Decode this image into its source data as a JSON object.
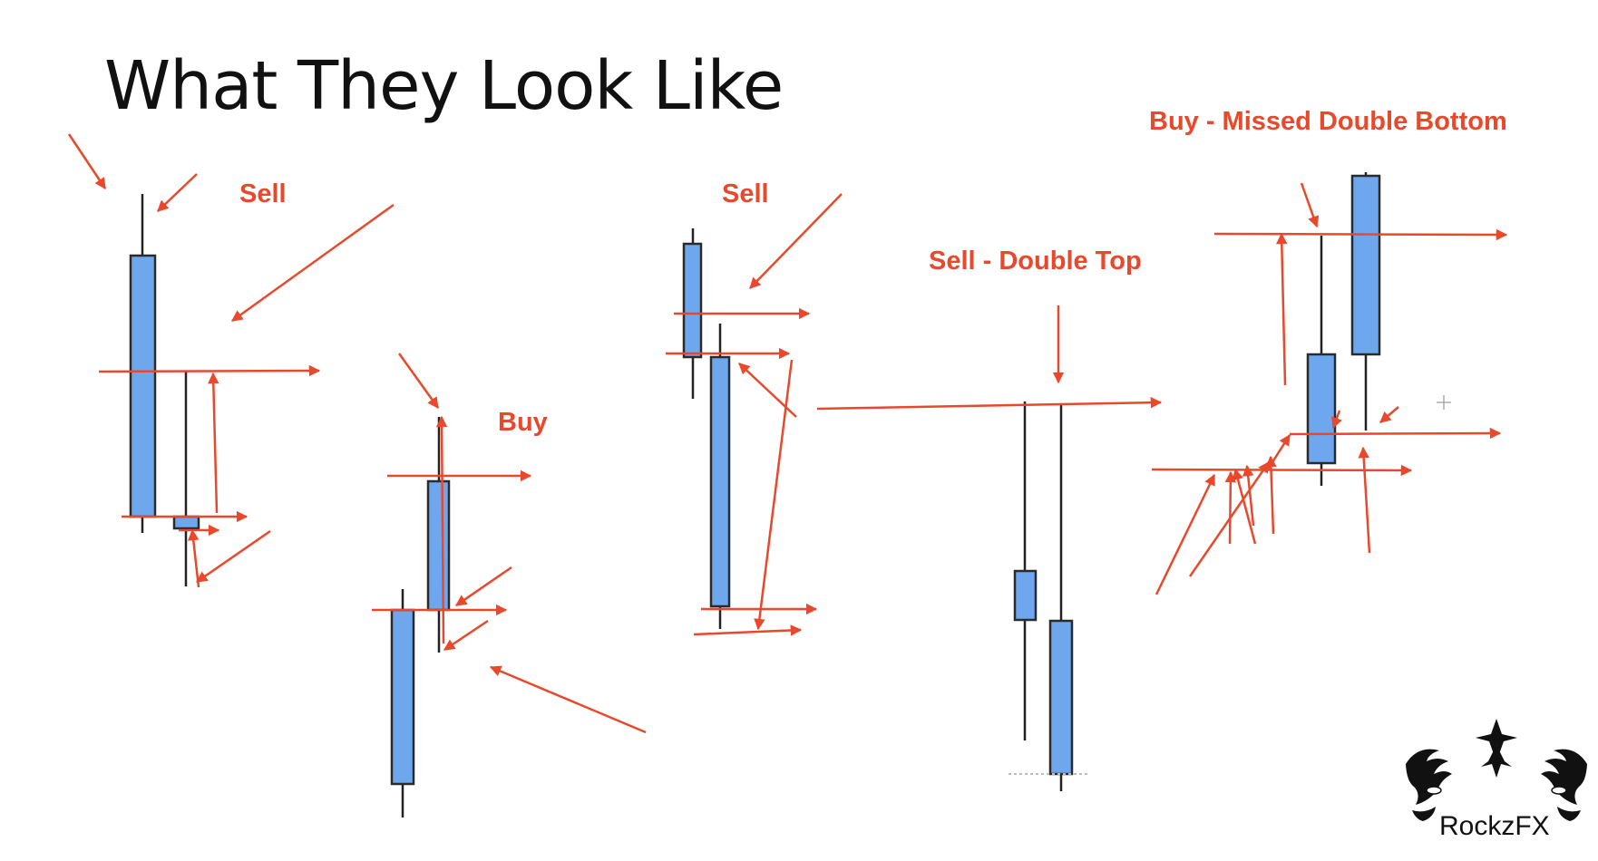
{
  "title": "What They Look Like",
  "colors": {
    "arrow": "#e8492d",
    "candle_fill": "#6ea7ee",
    "candle_stroke": "#2b2b2b",
    "wick": "#222222",
    "text": "#111111"
  },
  "labels": {
    "sell_1": "Sell",
    "buy_1": "Buy",
    "sell_2": "Sell",
    "sell_double_top": "Sell - Double Top",
    "buy_missed_double_bottom": "Buy - Missed Double Bottom"
  },
  "logo": {
    "text": "RockzFX",
    "icon": "tiger-face-icon"
  }
}
